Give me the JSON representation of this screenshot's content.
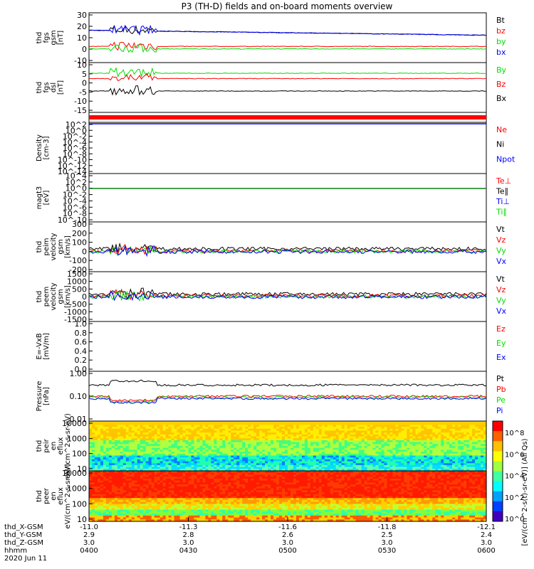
{
  "title": "P3 (TH-D) fields and on-board moments overview",
  "colors": {
    "black": "#000000",
    "red": "#ff0000",
    "green": "#00dd00",
    "blue": "#0000ff"
  },
  "chart_data": [
    {
      "type": "line",
      "ylabel": "thd fgs gsm [nT]",
      "ylim": [
        -10,
        30
      ],
      "ticks": [
        "30",
        "20",
        "10",
        "0",
        "-10"
      ],
      "series": [
        {
          "name": "Bt",
          "color": "black",
          "base": 16
        },
        {
          "name": "bz",
          "color": "red",
          "base": 3
        },
        {
          "name": "by",
          "color": "green",
          "base": 1
        },
        {
          "name": "bx",
          "color": "blue",
          "base": 16
        }
      ]
    },
    {
      "type": "line",
      "ylabel": "thd fgs dsl [nT]",
      "ylim": [
        -18,
        10
      ],
      "ticks": [
        "10",
        "5",
        "0",
        "-5",
        "-10",
        "-15"
      ],
      "series": [
        {
          "name": "By",
          "color": "green",
          "base": 4
        },
        {
          "name": "Bz",
          "color": "red",
          "base": 1
        },
        {
          "name": "Bx",
          "color": "black",
          "base": -6
        }
      ]
    },
    {
      "type": "line",
      "ylabel": "",
      "ylim": [
        0,
        1
      ],
      "ticks": [],
      "series": [
        {
          "name": "",
          "color": "red",
          "base": 0.5
        }
      ]
    },
    {
      "type": "line",
      "ylabel": "Density [cm-3]",
      "ylim": [
        -14,
        2
      ],
      "ticks": [
        "10^2",
        "10^0",
        "10^-2",
        "10^-4",
        "10^-6",
        "10^-8",
        "10^-10",
        "10^-12",
        "10^-14"
      ],
      "series": [
        {
          "name": "Ne",
          "color": "red",
          "base": 0
        },
        {
          "name": "Ni",
          "color": "black",
          "base": 0
        },
        {
          "name": "Npot",
          "color": "blue",
          "base": 0
        }
      ]
    },
    {
      "type": "line",
      "ylabel": "magt3 [eV]",
      "ylim": [
        -10,
        4
      ],
      "ticks": [
        "10^4",
        "10^2",
        "10^0",
        "10^-2",
        "10^-4",
        "10^-6",
        "10^-8",
        "10^-10"
      ],
      "series": [
        {
          "name": "Te⊥",
          "color": "red",
          "base": 0
        },
        {
          "name": "Te∥",
          "color": "black",
          "base": 0
        },
        {
          "name": "Ti⊥",
          "color": "blue",
          "base": 0
        },
        {
          "name": "Ti∥",
          "color": "green",
          "base": 0
        }
      ]
    },
    {
      "type": "line",
      "ylabel": "thd peim velocity gsm [km/s]",
      "ylim": [
        -200,
        300
      ],
      "ticks": [
        "300",
        "200",
        "100",
        "0",
        "-100",
        "-200"
      ],
      "series": [
        {
          "name": "Vt",
          "color": "black",
          "base": 30
        },
        {
          "name": "Vz",
          "color": "red",
          "base": 10
        },
        {
          "name": "Vy",
          "color": "green",
          "base": 5
        },
        {
          "name": "Vx",
          "color": "blue",
          "base": 0
        }
      ]
    },
    {
      "type": "line",
      "ylabel": "thd peem velocity gsm [km/s]",
      "ylim": [
        -1500,
        1500
      ],
      "ticks": [
        "1500",
        "1000",
        "500",
        "0",
        "-500",
        "-1000",
        "-1500"
      ],
      "series": [
        {
          "name": "Vt",
          "color": "black",
          "base": 150
        },
        {
          "name": "Vz",
          "color": "red",
          "base": 50
        },
        {
          "name": "Vy",
          "color": "green",
          "base": 0
        },
        {
          "name": "Vx",
          "color": "blue",
          "base": -20
        }
      ]
    },
    {
      "type": "line",
      "ylabel": "E=-VxB [mV/m]",
      "ylim": [
        0,
        1
      ],
      "ticks": [
        "1.0",
        "0.8",
        "0.6",
        "0.4",
        "0.2",
        "0.0"
      ],
      "series": [
        {
          "name": "Ez",
          "color": "red",
          "base": 0.5
        },
        {
          "name": "Ey",
          "color": "green",
          "base": 0.5
        },
        {
          "name": "Ex",
          "color": "blue",
          "base": 0.5
        }
      ]
    },
    {
      "type": "line",
      "ylabel": "Pressure [nPa]",
      "ylim": [
        0.01,
        1
      ],
      "ticks": [
        "1.00",
        "0.10",
        "0.01"
      ],
      "series": [
        {
          "name": "Pt",
          "color": "black",
          "base": 0.28
        },
        {
          "name": "Pb",
          "color": "red",
          "base": 0.1
        },
        {
          "name": "Pe",
          "color": "green",
          "base": 0.09
        },
        {
          "name": "Pi",
          "color": "blue",
          "base": 0.08
        }
      ]
    },
    {
      "type": "heatmap",
      "ylabel": "thd peir en eflux eV/(cm^2-s-sr-eV)",
      "ticks": [
        "10000",
        "1000",
        "100",
        "10"
      ]
    },
    {
      "type": "heatmap",
      "ylabel": "thd peer en eflux eV/(cm^2-s-sr-eV)",
      "ticks": [
        "10000",
        "1000",
        "100",
        "10"
      ]
    }
  ],
  "colorbar": {
    "label": "[eV/(cm^2-s(t)-sr-eV)]  (All Qs)",
    "ticks": [
      "10^8",
      "10^6",
      "10^4",
      "10^2",
      "10^0"
    ]
  },
  "xaxis": {
    "rows": [
      {
        "label": "thd_X-GSM",
        "values": [
          "-11.0",
          "-11.3",
          "-11.6",
          "-11.8",
          "-12.1"
        ]
      },
      {
        "label": "thd_Y-GSM",
        "values": [
          "2.9",
          "2.8",
          "2.6",
          "2.5",
          "2.4"
        ]
      },
      {
        "label": "thd_Z-GSM",
        "values": [
          "3.0",
          "3.0",
          "3.0",
          "3.0",
          "3.0"
        ]
      },
      {
        "label": "hhmm",
        "values": [
          "0400",
          "0430",
          "0500",
          "0530",
          "0600"
        ]
      }
    ],
    "date": "2020 Jun 11"
  }
}
